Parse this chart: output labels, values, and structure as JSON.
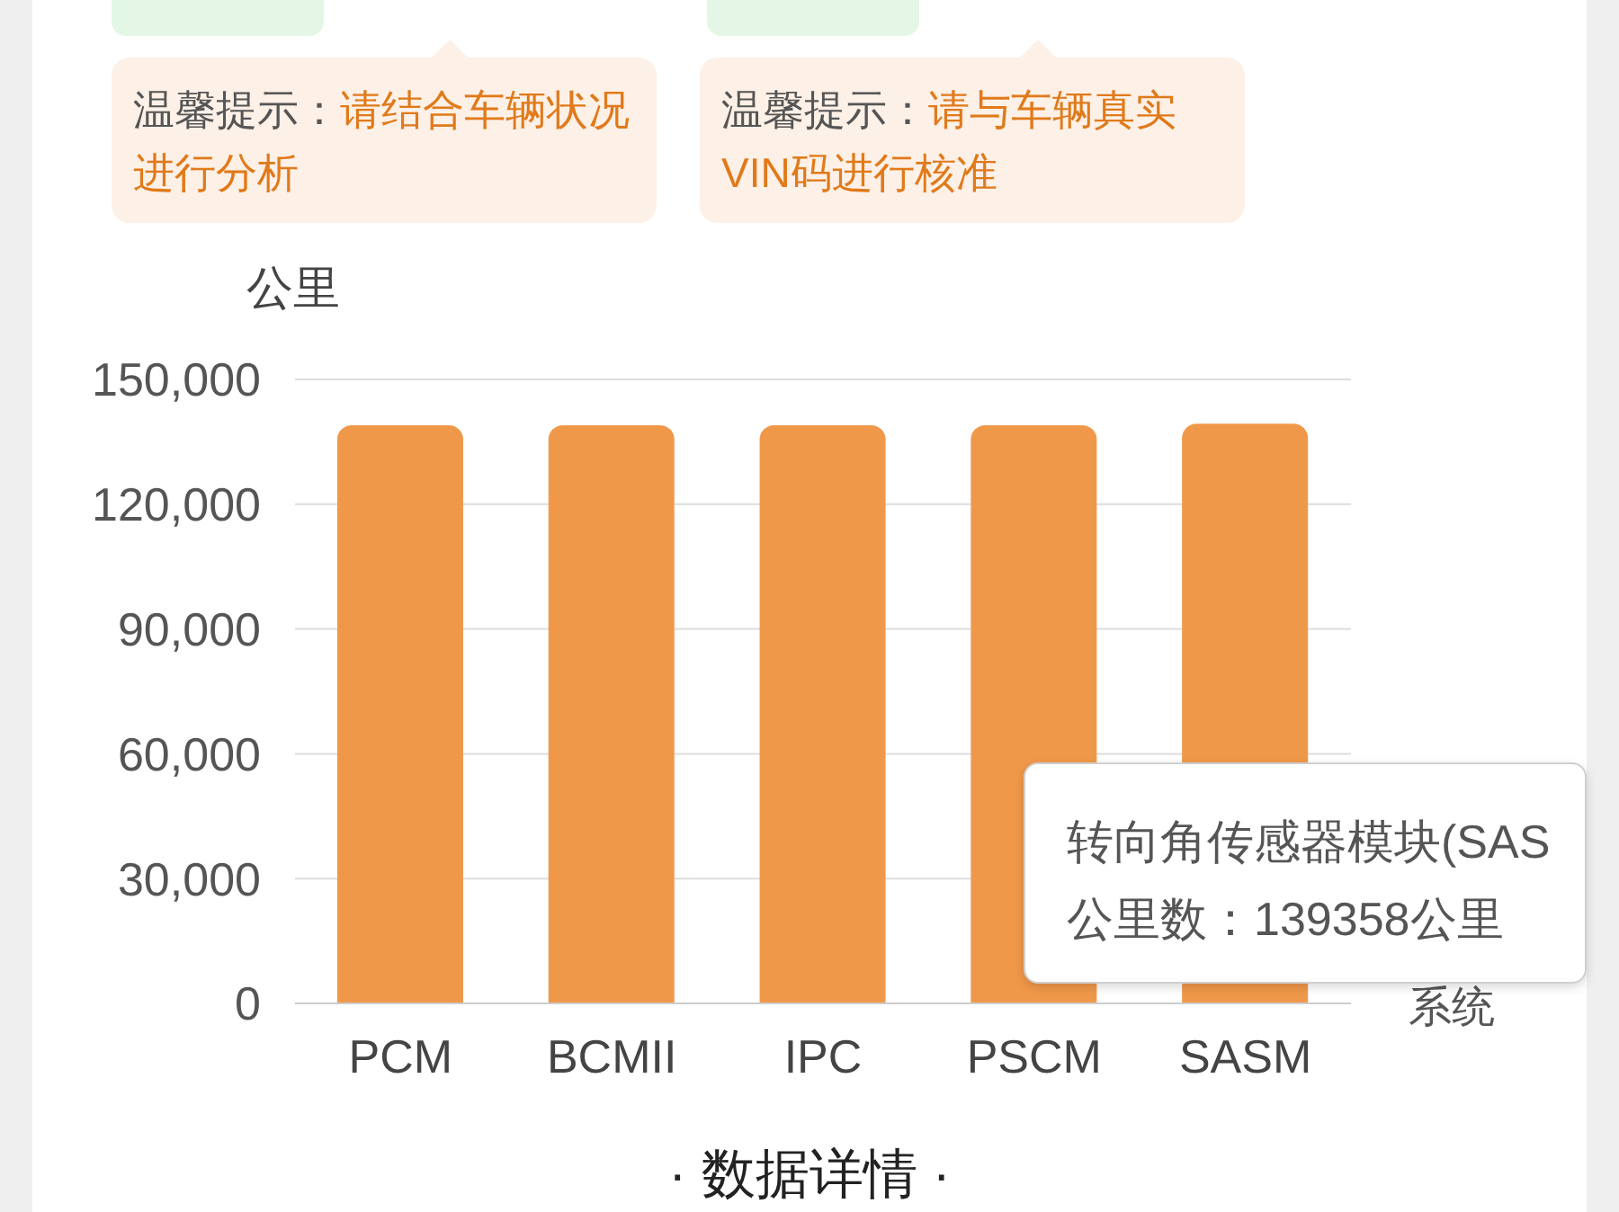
{
  "chart_data": {
    "type": "bar",
    "categories": [
      "PCM",
      "BCMII",
      "IPC",
      "PSCM",
      "SASM"
    ],
    "values": [
      139000,
      139000,
      139000,
      139000,
      139358
    ],
    "color": "#f0984a",
    "xlabel": "系统",
    "ylabel": "公里",
    "ylim": [
      0,
      150000
    ],
    "yticks": [
      0,
      {
        "value": 30000,
        "label": "30,000"
      },
      {
        "value": 60000,
        "label": "60,000"
      },
      {
        "value": 90000,
        "label": "90,000"
      },
      {
        "value": 120000,
        "label": "120,000"
      },
      {
        "value": 150000,
        "label": "150,000"
      }
    ],
    "grid": "y",
    "annotations": [
      "温馨提示：",
      "请结合车辆状况进行分析",
      "温馨提示：",
      "请与车辆真实VIN码进行核准",
      "转向角传感器模块(SAS",
      "公里数：139358公里",
      "· 数据详情 ·"
    ]
  }
}
